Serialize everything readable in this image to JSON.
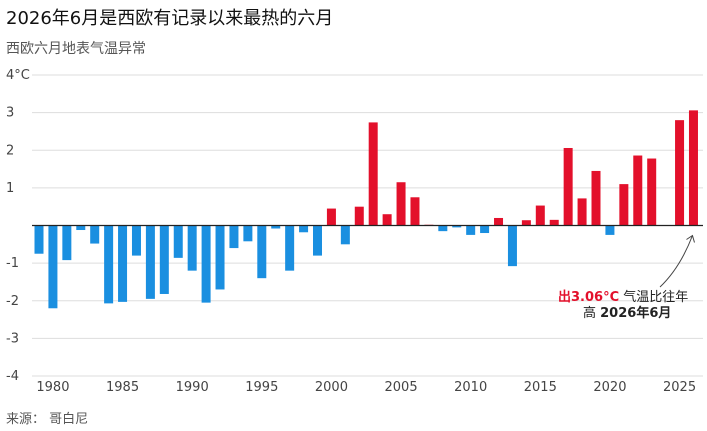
{
  "title": "2026年6月是西欧有记录以来最热的六月",
  "subtitle": "西欧六月地表气温异常",
  "source": "来源： 哥白尼",
  "colors": {
    "positive": "#e3102b",
    "negative": "#1a8fe0",
    "grid": "#dddddd",
    "zero_line": "#222222"
  },
  "annotation": {
    "highlight": "出3.06°C",
    "text1": " 气温比往年",
    "text2_pre": "高 ",
    "text2_bold": "2026年6月"
  },
  "chart_data": {
    "type": "bar",
    "title": "2026年6月是西欧有记录以来最热的六月",
    "subtitle": "西欧六月地表气温异常",
    "xlabel": "",
    "ylabel": "",
    "ylim": [
      -4,
      4
    ],
    "yticks": [
      4,
      3,
      2,
      1,
      -1,
      -2,
      -3,
      -4
    ],
    "ytick_labels": [
      "4°C",
      "3",
      "2",
      "1",
      "-1",
      "-2",
      "-3",
      "-4"
    ],
    "xticks": [
      1980,
      1985,
      1990,
      1995,
      2000,
      2005,
      2010,
      2015,
      2020,
      2025
    ],
    "grid": true,
    "x": [
      1979,
      1980,
      1981,
      1982,
      1983,
      1984,
      1985,
      1986,
      1987,
      1988,
      1989,
      1990,
      1991,
      1992,
      1993,
      1994,
      1995,
      1996,
      1997,
      1998,
      1999,
      2000,
      2001,
      2002,
      2003,
      2004,
      2005,
      2006,
      2007,
      2008,
      2009,
      2010,
      2011,
      2012,
      2013,
      2014,
      2015,
      2016,
      2017,
      2018,
      2019,
      2020,
      2021,
      2022,
      2023,
      2024,
      2025,
      2026
    ],
    "values": [
      -0.75,
      -2.2,
      -0.92,
      -0.12,
      -0.48,
      -2.07,
      -2.03,
      -0.8,
      -1.95,
      -1.82,
      -0.86,
      -1.2,
      -2.05,
      -1.7,
      -0.6,
      -0.42,
      -1.4,
      -0.08,
      -1.2,
      -0.18,
      -0.8,
      0.45,
      -0.5,
      0.5,
      2.74,
      0.3,
      1.15,
      0.75,
      0.02,
      -0.15,
      -0.05,
      -0.25,
      -0.2,
      0.2,
      -1.08,
      0.14,
      0.53,
      0.15,
      2.06,
      0.72,
      1.45,
      -0.25,
      1.1,
      1.86,
      1.78,
      0.0,
      2.8,
      3.06
    ]
  }
}
